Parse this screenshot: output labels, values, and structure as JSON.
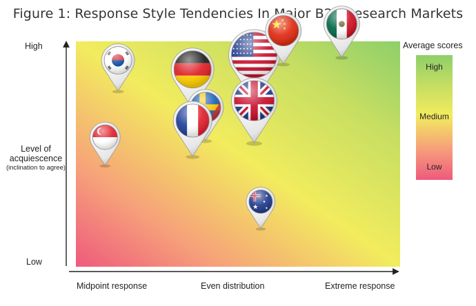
{
  "chart_data": {
    "type": "scatter",
    "title": "Figure 1: Response Style Tendencies In Major B2B Research Markets",
    "y_labels": {
      "high": "High",
      "low": "Low"
    },
    "ylabel": "Level of acquiescence",
    "ylabel_sub": "(inclination to agree)",
    "x_labels": [
      "Midpoint response",
      "Even distribution",
      "Extreme response"
    ],
    "legend": {
      "title": "Average scores",
      "levels": [
        "High",
        "Medium",
        "Low"
      ],
      "colors": [
        "#8ecf6a",
        "#f2ec5e",
        "#ee5a7d"
      ]
    },
    "xlim": [
      0,
      1
    ],
    "ylim": [
      0,
      1
    ],
    "points": [
      {
        "flag": "south-korea-flag",
        "x": 0.13,
        "y": 0.78
      },
      {
        "flag": "singapore-flag",
        "x": 0.09,
        "y": 0.45
      },
      {
        "flag": "germany-flag",
        "x": 0.36,
        "y": 0.7
      },
      {
        "flag": "sweden-flag",
        "x": 0.4,
        "y": 0.56
      },
      {
        "flag": "france-flag",
        "x": 0.36,
        "y": 0.49
      },
      {
        "flag": "usa-flag",
        "x": 0.55,
        "y": 0.73
      },
      {
        "flag": "uk-flag",
        "x": 0.55,
        "y": 0.55
      },
      {
        "flag": "china-flag",
        "x": 0.64,
        "y": 0.9
      },
      {
        "flag": "mexico-flag",
        "x": 0.82,
        "y": 0.93
      },
      {
        "flag": "australia-flag",
        "x": 0.57,
        "y": 0.17
      }
    ],
    "grid": false
  }
}
